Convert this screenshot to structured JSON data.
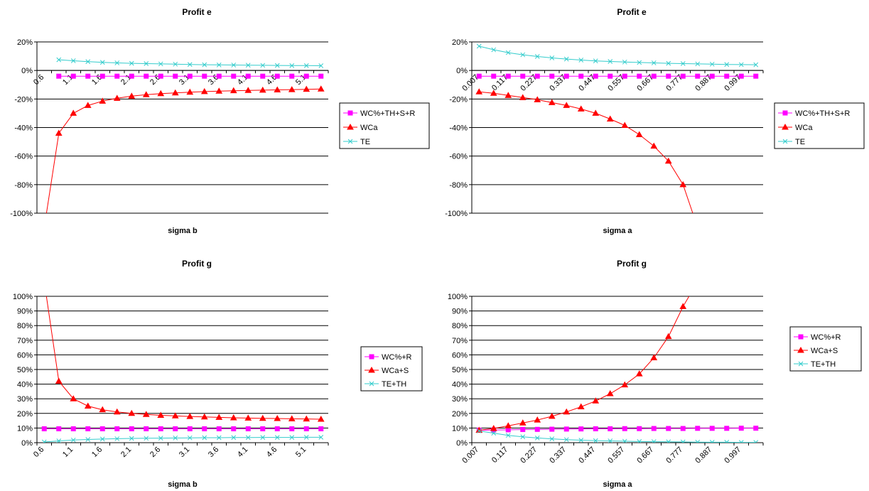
{
  "charts": [
    {
      "chart_data": {
        "type": "line",
        "title": "Profit e",
        "xlabel": "sigma b",
        "ylabel": "",
        "ylim": [
          -1.0,
          0.2
        ],
        "yticks": [
          -1.0,
          -0.8,
          -0.6,
          -0.4,
          -0.2,
          0,
          0.2
        ],
        "ytick_labels": [
          "-100%",
          "-80%",
          "-60%",
          "-40%",
          "-20%",
          "0%",
          "20%"
        ],
        "xtick_labels": [
          "0.6",
          "1.1",
          "1.6",
          "2.1",
          "2.6",
          "3.1",
          "3.6",
          "4.1",
          "4.6",
          "5.1"
        ],
        "categories": [
          "0.6",
          "0.85",
          "1.1",
          "1.35",
          "1.6",
          "1.85",
          "2.1",
          "2.35",
          "2.6",
          "2.85",
          "3.1",
          "3.35",
          "3.6",
          "3.85",
          "4.1",
          "4.35",
          "4.6",
          "4.85",
          "5.1",
          "5.35"
        ],
        "legend_position": "right",
        "grid": "horizontal",
        "series": [
          {
            "name": "WC%+TH+S+R",
            "color": "#ff00ff",
            "marker": "square",
            "values": [
              null,
              -0.04,
              -0.04,
              -0.04,
              -0.04,
              -0.04,
              -0.04,
              -0.04,
              -0.04,
              -0.04,
              -0.04,
              -0.04,
              -0.04,
              -0.04,
              -0.04,
              -0.04,
              -0.04,
              -0.04,
              -0.04,
              -0.04
            ]
          },
          {
            "name": "WCa",
            "color": "#ff0000",
            "marker": "triangle",
            "values": [
              -1.1,
              -0.44,
              -0.3,
              -0.245,
              -0.215,
              -0.195,
              -0.18,
              -0.17,
              -0.162,
              -0.157,
              -0.152,
              -0.148,
              -0.145,
              -0.142,
              -0.14,
              -0.138,
              -0.136,
              -0.134,
              -0.132,
              -0.13
            ]
          },
          {
            "name": "TE",
            "color": "#33cccc",
            "marker": "x",
            "values": [
              null,
              0.075,
              0.068,
              0.062,
              0.057,
              0.053,
              0.05,
              0.048,
              0.046,
              0.044,
              0.042,
              0.04,
              0.039,
              0.038,
              0.037,
              0.036,
              0.035,
              0.034,
              0.034,
              0.033
            ]
          }
        ]
      }
    },
    {
      "chart_data": {
        "type": "line",
        "title": "Profit e",
        "xlabel": "sigma a",
        "ylabel": "",
        "ylim": [
          -1.0,
          0.2
        ],
        "yticks": [
          -1.0,
          -0.8,
          -0.6,
          -0.4,
          -0.2,
          0,
          0.2
        ],
        "ytick_labels": [
          "-100%",
          "-80%",
          "-60%",
          "-40%",
          "-20%",
          "0%",
          "20%"
        ],
        "xtick_labels": [
          "0.007",
          "0.117",
          "0.227",
          "0.337",
          "0.447",
          "0.557",
          "0.667",
          "0.777",
          "0.887",
          "0.997"
        ],
        "categories": [
          "0.007",
          "0.062",
          "0.117",
          "0.172",
          "0.227",
          "0.282",
          "0.337",
          "0.392",
          "0.447",
          "0.502",
          "0.557",
          "0.612",
          "0.667",
          "0.722",
          "0.777",
          "0.832",
          "0.887",
          "0.942",
          "0.997",
          "1.052"
        ],
        "legend_position": "right",
        "grid": "horizontal",
        "series": [
          {
            "name": "WC%+TH+S+R",
            "color": "#ff00ff",
            "marker": "square",
            "values": [
              -0.04,
              -0.04,
              -0.04,
              -0.04,
              -0.04,
              -0.04,
              -0.04,
              -0.04,
              -0.04,
              -0.04,
              -0.04,
              -0.04,
              -0.04,
              -0.04,
              -0.04,
              -0.04,
              -0.04,
              -0.04,
              -0.04,
              -0.04
            ]
          },
          {
            "name": "WCa",
            "color": "#ff0000",
            "marker": "triangle",
            "values": [
              -0.15,
              -0.16,
              -0.175,
              -0.19,
              -0.205,
              -0.225,
              -0.245,
              -0.27,
              -0.3,
              -0.34,
              -0.385,
              -0.45,
              -0.53,
              -0.635,
              -0.8,
              -1.1,
              null,
              null,
              null,
              null
            ]
          },
          {
            "name": "TE",
            "color": "#33cccc",
            "marker": "x",
            "values": [
              0.17,
              0.145,
              0.125,
              0.11,
              0.098,
              0.088,
              0.08,
              0.073,
              0.067,
              0.063,
              0.059,
              0.056,
              0.053,
              0.05,
              0.048,
              0.046,
              0.044,
              0.042,
              0.041,
              0.04
            ]
          }
        ]
      }
    },
    {
      "chart_data": {
        "type": "line",
        "title": "Profit g",
        "xlabel": "sigma b",
        "ylabel": "",
        "ylim": [
          0,
          1.0
        ],
        "yticks": [
          0,
          0.1,
          0.2,
          0.3,
          0.4,
          0.5,
          0.6,
          0.7,
          0.8,
          0.9,
          1.0
        ],
        "ytick_labels": [
          "0%",
          "10%",
          "20%",
          "30%",
          "40%",
          "50%",
          "60%",
          "70%",
          "80%",
          "90%",
          "100%"
        ],
        "xtick_labels": [
          "0.6",
          "1.1",
          "1.6",
          "2.1",
          "2.6",
          "3.1",
          "3.6",
          "4.1",
          "4.6",
          "5.1"
        ],
        "categories": [
          "0.6",
          "0.85",
          "1.1",
          "1.35",
          "1.6",
          "1.85",
          "2.1",
          "2.35",
          "2.6",
          "2.85",
          "3.1",
          "3.35",
          "3.6",
          "3.85",
          "4.1",
          "4.35",
          "4.6",
          "4.85",
          "5.1",
          "5.35"
        ],
        "legend_position": "right",
        "grid": "horizontal",
        "series": [
          {
            "name": "WC%+R",
            "color": "#ff00ff",
            "marker": "square",
            "values": [
              0.095,
              0.095,
              0.095,
              0.095,
              0.095,
              0.095,
              0.095,
              0.095,
              0.095,
              0.095,
              0.095,
              0.095,
              0.095,
              0.095,
              0.095,
              0.095,
              0.095,
              0.095,
              0.095,
              0.095
            ]
          },
          {
            "name": "WCa+S",
            "color": "#ff0000",
            "marker": "triangle",
            "values": [
              1.1,
              0.42,
              0.3,
              0.25,
              0.225,
              0.21,
              0.2,
              0.193,
              0.187,
              0.183,
              0.179,
              0.176,
              0.173,
              0.17,
              0.168,
              0.166,
              0.165,
              0.163,
              0.162,
              0.16
            ]
          },
          {
            "name": "TE+TH",
            "color": "#33cccc",
            "marker": "x",
            "values": [
              0.005,
              0.012,
              0.018,
              0.022,
              0.025,
              0.027,
              0.029,
              0.03,
              0.031,
              0.032,
              0.033,
              0.034,
              0.034,
              0.035,
              0.035,
              0.036,
              0.036,
              0.036,
              0.037,
              0.037
            ]
          }
        ]
      }
    },
    {
      "chart_data": {
        "type": "line",
        "title": "Profit g",
        "xlabel": "sigma a",
        "ylabel": "",
        "ylim": [
          0,
          1.0
        ],
        "yticks": [
          0,
          0.1,
          0.2,
          0.3,
          0.4,
          0.5,
          0.6,
          0.7,
          0.8,
          0.9,
          1.0
        ],
        "ytick_labels": [
          "0%",
          "10%",
          "20%",
          "30%",
          "40%",
          "50%",
          "60%",
          "70%",
          "80%",
          "90%",
          "100%"
        ],
        "xtick_labels": [
          "0.007",
          "0.117",
          "0.227",
          "0.337",
          "0.447",
          "0.557",
          "0.667",
          "0.777",
          "0.887",
          "0.997"
        ],
        "categories": [
          "0.007",
          "0.062",
          "0.117",
          "0.172",
          "0.227",
          "0.282",
          "0.337",
          "0.392",
          "0.447",
          "0.502",
          "0.557",
          "0.612",
          "0.667",
          "0.722",
          "0.777",
          "0.832",
          "0.887",
          "0.942",
          "0.997",
          "1.052"
        ],
        "legend_position": "right",
        "grid": "horizontal",
        "series": [
          {
            "name": "WC%+R",
            "color": "#ff00ff",
            "marker": "square",
            "values": [
              0.085,
              0.087,
              0.088,
              0.09,
              0.091,
              0.092,
              0.093,
              0.094,
              0.095,
              0.095,
              0.096,
              0.096,
              0.097,
              0.097,
              0.097,
              0.098,
              0.098,
              0.098,
              0.099,
              0.099
            ]
          },
          {
            "name": "WCa+S",
            "color": "#ff0000",
            "marker": "triangle",
            "values": [
              0.085,
              0.097,
              0.115,
              0.135,
              0.155,
              0.18,
              0.21,
              0.245,
              0.285,
              0.335,
              0.395,
              0.47,
              0.58,
              0.725,
              0.93,
              1.1,
              null,
              null,
              null,
              null
            ]
          },
          {
            "name": "TE+TH",
            "color": "#33cccc",
            "marker": "x",
            "values": [
              0.08,
              0.065,
              0.05,
              0.04,
              0.032,
              0.026,
              0.021,
              0.017,
              0.014,
              0.012,
              0.01,
              0.008,
              0.007,
              0.006,
              0.005,
              0.004,
              0.003,
              0.003,
              0.002,
              0.002
            ]
          }
        ]
      }
    }
  ]
}
